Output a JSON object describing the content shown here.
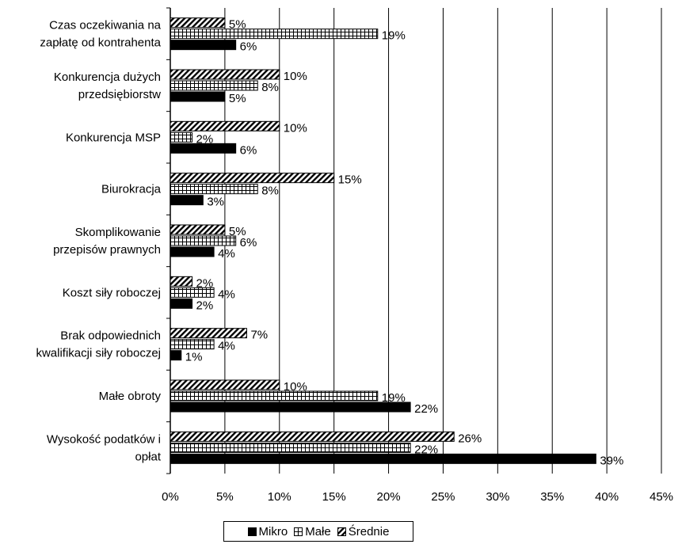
{
  "chart_data": {
    "type": "bar",
    "orientation": "horizontal",
    "categories": [
      [
        "Czas oczekiwania na",
        "zapłatę od kontrahenta"
      ],
      [
        "Konkurencja dużych",
        "przedsiębiorstw"
      ],
      [
        "Konkurencja MSP"
      ],
      [
        "Biurokracja"
      ],
      [
        "Skomplikowanie",
        "przepisów prawnych"
      ],
      [
        "Koszt siły roboczej"
      ],
      [
        "Brak odpowiednich",
        "kwalifikacji siły roboczej"
      ],
      [
        "Małe obroty"
      ],
      [
        "Wysokość podatków i",
        "opłat"
      ]
    ],
    "series": [
      {
        "name": "Średnie",
        "pattern": "diagonal",
        "values": [
          5,
          10,
          10,
          15,
          5,
          2,
          7,
          10,
          26
        ]
      },
      {
        "name": "Małe",
        "pattern": "grid",
        "values": [
          19,
          8,
          2,
          8,
          6,
          4,
          4,
          19,
          22
        ]
      },
      {
        "name": "Mikro",
        "pattern": "solid",
        "values": [
          6,
          5,
          6,
          3,
          4,
          2,
          1,
          22,
          39
        ]
      }
    ],
    "xlim": [
      0,
      45
    ],
    "xticks": [
      0,
      5,
      10,
      15,
      20,
      25,
      30,
      35,
      40,
      45
    ],
    "value_suffix": "%",
    "grid": true,
    "legend_position": "bottom"
  },
  "legend": {
    "items": [
      {
        "label": "Mikro",
        "pattern": "solid"
      },
      {
        "label": "Małe",
        "pattern": "grid"
      },
      {
        "label": "Średnie",
        "pattern": "diagonal"
      }
    ]
  },
  "colors": {
    "bar_fill": "#000000",
    "background": "#ffffff",
    "grid": "#000000"
  }
}
